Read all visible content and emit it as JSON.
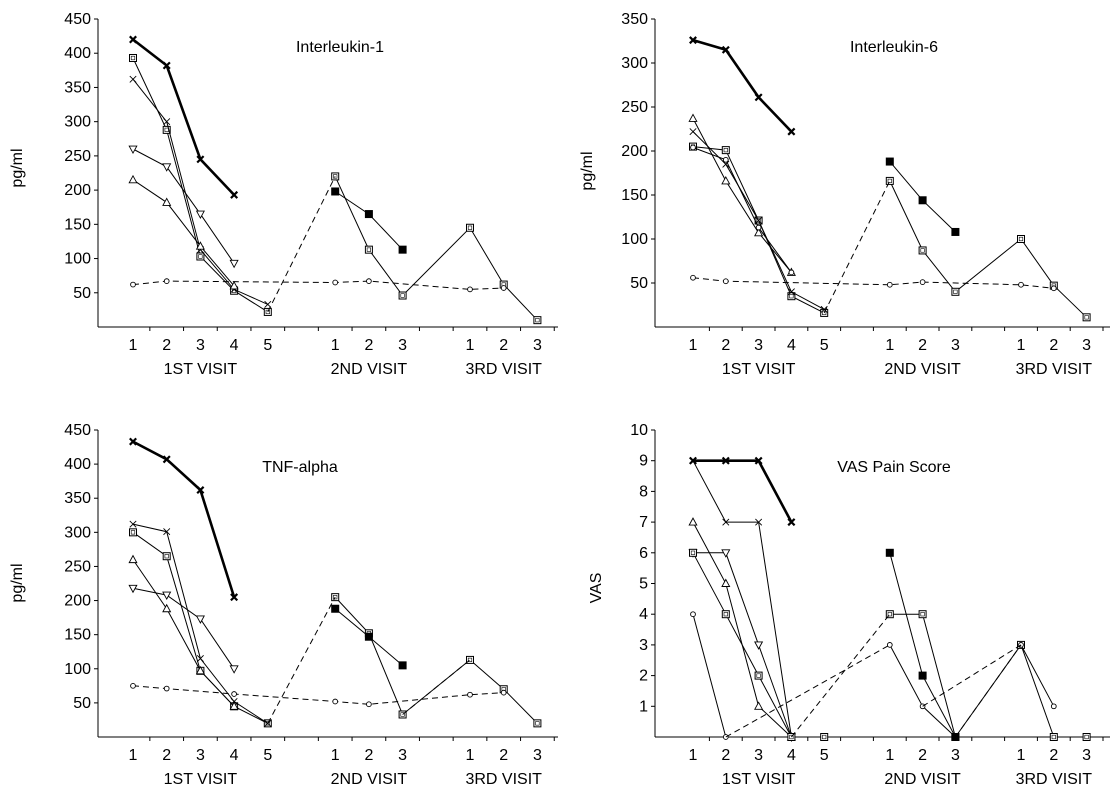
{
  "chart_data": [
    {
      "type": "line",
      "title": "Interleukin-1",
      "ylabel": "pg/ml",
      "ylim": [
        0,
        450
      ],
      "yticks": [
        50,
        100,
        150,
        200,
        250,
        300,
        350,
        400,
        450
      ],
      "x_tick_labels": [
        "1",
        "2",
        "3",
        "4",
        "5",
        "1",
        "2",
        "3",
        "1",
        "2",
        "3"
      ],
      "x_groups": [
        "1ST VISIT",
        "2ND VISIT",
        "3RD VISIT"
      ],
      "series": [
        {
          "marker": "x",
          "line": "bold",
          "segments": [
            [
              [
                1,
                420
              ],
              [
                2,
                382
              ],
              [
                3,
                245
              ],
              [
                4,
                193
              ]
            ]
          ]
        },
        {
          "marker": "square",
          "line": "solid",
          "segments": [
            [
              [
                1,
                393
              ],
              [
                2,
                288
              ],
              [
                3,
                103
              ],
              [
                4,
                53
              ],
              [
                5,
                22
              ]
            ],
            [
              [
                6,
                220
              ],
              [
                7,
                113
              ],
              [
                8,
                46
              ],
              [
                9,
                145
              ],
              [
                10,
                62
              ],
              [
                11,
                10
              ]
            ]
          ]
        },
        {
          "marker": "x-thin",
          "line": "solid",
          "segments": [
            [
              [
                1,
                362
              ],
              [
                2,
                300
              ],
              [
                3,
                113
              ],
              [
                4,
                55
              ],
              [
                5,
                33
              ]
            ]
          ]
        },
        {
          "marker": "triangle-down",
          "line": "solid",
          "segments": [
            [
              [
                1,
                260
              ],
              [
                2,
                234
              ],
              [
                3,
                165
              ],
              [
                4,
                93
              ]
            ]
          ]
        },
        {
          "marker": "triangle",
          "line": "solid",
          "segments": [
            [
              [
                1,
                215
              ],
              [
                2,
                182
              ],
              [
                3,
                118
              ],
              [
                4,
                60
              ]
            ]
          ]
        },
        {
          "marker": "square-filled",
          "line": "solid",
          "segments": [
            [
              [
                6,
                198
              ],
              [
                7,
                165
              ],
              [
                8,
                113
              ]
            ]
          ]
        },
        {
          "marker": "circle",
          "line": "dashed",
          "segments": [
            [
              [
                1,
                62
              ],
              [
                2,
                67
              ],
              [
                6,
                65
              ],
              [
                7,
                67
              ],
              [
                9,
                55
              ],
              [
                10,
                57
              ]
            ]
          ]
        },
        {
          "marker": "none",
          "line": "dashed",
          "segments": [
            [
              [
                5,
                22
              ],
              [
                6,
                220
              ]
            ]
          ]
        }
      ]
    },
    {
      "type": "line",
      "title": "Interleukin-6",
      "ylabel": "pg/ml",
      "ylim": [
        0,
        350
      ],
      "yticks": [
        50,
        100,
        150,
        200,
        250,
        300,
        350
      ],
      "x_tick_labels": [
        "1",
        "2",
        "3",
        "4",
        "5",
        "1",
        "2",
        "3",
        "1",
        "2",
        "3"
      ],
      "x_groups": [
        "1ST VISIT",
        "2ND VISIT",
        "3RD VISIT"
      ],
      "series": [
        {
          "marker": "x",
          "line": "bold",
          "segments": [
            [
              [
                1,
                326
              ],
              [
                2,
                315
              ],
              [
                3,
                261
              ],
              [
                4,
                222
              ]
            ]
          ]
        },
        {
          "marker": "square",
          "line": "solid",
          "segments": [
            [
              [
                1,
                205
              ],
              [
                2,
                201
              ],
              [
                3,
                121
              ],
              [
                4,
                35
              ],
              [
                5,
                16
              ]
            ],
            [
              [
                6,
                166
              ],
              [
                7,
                87
              ],
              [
                8,
                40
              ],
              [
                9,
                100
              ],
              [
                10,
                47
              ],
              [
                11,
                11
              ]
            ]
          ]
        },
        {
          "marker": "x-thin",
          "line": "solid",
          "segments": [
            [
              [
                1,
                222
              ],
              [
                2,
                185
              ],
              [
                3,
                121
              ],
              [
                4,
                40
              ],
              [
                5,
                20
              ]
            ]
          ]
        },
        {
          "marker": "triangle",
          "line": "solid",
          "segments": [
            [
              [
                1,
                237
              ],
              [
                2,
                166
              ],
              [
                3,
                107
              ],
              [
                4,
                62
              ]
            ]
          ]
        },
        {
          "marker": "circle-plain",
          "line": "solid",
          "segments": [
            [
              [
                1,
                204
              ],
              [
                2,
                190
              ],
              [
                3,
                113
              ],
              [
                4,
                62
              ]
            ]
          ]
        },
        {
          "marker": "square-filled",
          "line": "solid",
          "segments": [
            [
              [
                6,
                188
              ],
              [
                7,
                144
              ],
              [
                8,
                108
              ]
            ]
          ]
        },
        {
          "marker": "circle",
          "line": "dashed",
          "segments": [
            [
              [
                1,
                56
              ],
              [
                2,
                52
              ],
              [
                6,
                48
              ],
              [
                7,
                51
              ],
              [
                9,
                48
              ],
              [
                10,
                44
              ]
            ]
          ]
        },
        {
          "marker": "none",
          "line": "dashed",
          "segments": [
            [
              [
                5,
                16
              ],
              [
                6,
                166
              ]
            ]
          ]
        }
      ]
    },
    {
      "type": "line",
      "title": "TNF-alpha",
      "ylabel": "pg/ml",
      "ylim": [
        0,
        450
      ],
      "yticks": [
        50,
        100,
        150,
        200,
        250,
        300,
        350,
        400,
        450
      ],
      "x_tick_labels": [
        "1",
        "2",
        "3",
        "4",
        "5",
        "1",
        "2",
        "3",
        "1",
        "2",
        "3"
      ],
      "x_groups": [
        "1ST VISIT",
        "2ND VISIT",
        "3RD VISIT"
      ],
      "series": [
        {
          "marker": "x",
          "line": "bold",
          "segments": [
            [
              [
                1,
                433
              ],
              [
                2,
                407
              ],
              [
                3,
                362
              ],
              [
                4,
                205
              ]
            ]
          ]
        },
        {
          "marker": "square",
          "line": "solid",
          "segments": [
            [
              [
                1,
                300
              ],
              [
                2,
                265
              ],
              [
                3,
                97
              ],
              [
                4,
                45
              ],
              [
                5,
                20
              ]
            ],
            [
              [
                6,
                205
              ],
              [
                7,
                152
              ],
              [
                8,
                33
              ],
              [
                9,
                113
              ],
              [
                10,
                70
              ],
              [
                11,
                20
              ]
            ]
          ]
        },
        {
          "marker": "x-thin",
          "line": "solid",
          "segments": [
            [
              [
                1,
                312
              ],
              [
                2,
                301
              ],
              [
                3,
                115
              ],
              [
                4,
                52
              ],
              [
                5,
                20
              ]
            ]
          ]
        },
        {
          "marker": "triangle-down",
          "line": "solid",
          "segments": [
            [
              [
                1,
                218
              ],
              [
                2,
                208
              ],
              [
                3,
                173
              ],
              [
                4,
                100
              ]
            ]
          ]
        },
        {
          "marker": "triangle",
          "line": "solid",
          "segments": [
            [
              [
                1,
                260
              ],
              [
                2,
                188
              ],
              [
                3,
                97
              ],
              [
                4,
                45
              ]
            ]
          ]
        },
        {
          "marker": "square-filled",
          "line": "solid",
          "segments": [
            [
              [
                6,
                188
              ],
              [
                7,
                147
              ],
              [
                8,
                105
              ]
            ]
          ]
        },
        {
          "marker": "circle",
          "line": "dashed",
          "segments": [
            [
              [
                1,
                75
              ],
              [
                2,
                71
              ],
              [
                4,
                63
              ],
              [
                6,
                52
              ],
              [
                7,
                48
              ],
              [
                9,
                62
              ],
              [
                10,
                65
              ]
            ]
          ]
        },
        {
          "marker": "none",
          "line": "dashed",
          "segments": [
            [
              [
                5,
                20
              ],
              [
                6,
                205
              ]
            ],
            [
              [
                8,
                33
              ],
              [
                9,
                113
              ]
            ]
          ]
        }
      ]
    },
    {
      "type": "line",
      "title": "VAS Pain Score",
      "ylabel": "VAS",
      "ylim": [
        0,
        10
      ],
      "yticks": [
        1,
        2,
        3,
        4,
        5,
        6,
        7,
        8,
        9,
        10
      ],
      "x_tick_labels": [
        "1",
        "2",
        "3",
        "4",
        "5",
        "1",
        "2",
        "3",
        "1",
        "2",
        "3"
      ],
      "x_groups": [
        "1ST VISIT",
        "2ND VISIT",
        "3RD VISIT"
      ],
      "series": [
        {
          "marker": "x",
          "line": "bold",
          "segments": [
            [
              [
                1,
                9
              ],
              [
                2,
                9
              ],
              [
                3,
                9
              ],
              [
                4,
                7
              ]
            ]
          ]
        },
        {
          "marker": "x-thin",
          "line": "solid",
          "segments": [
            [
              [
                1,
                9
              ],
              [
                2,
                7
              ],
              [
                3,
                7
              ],
              [
                4,
                0
              ]
            ]
          ]
        },
        {
          "marker": "triangle",
          "line": "solid",
          "segments": [
            [
              [
                1,
                7
              ],
              [
                2,
                5
              ],
              [
                3,
                1
              ],
              [
                4,
                0
              ]
            ]
          ]
        },
        {
          "marker": "triangle-down",
          "line": "solid",
          "segments": [
            [
              [
                1,
                6
              ],
              [
                2,
                6
              ],
              [
                3,
                3
              ],
              [
                4,
                0
              ]
            ]
          ]
        },
        {
          "marker": "square",
          "line": "solid",
          "segments": [
            [
              [
                1,
                6
              ],
              [
                2,
                4
              ],
              [
                3,
                2
              ],
              [
                4,
                0
              ],
              [
                5,
                0
              ]
            ],
            [
              [
                6,
                4
              ],
              [
                7,
                4
              ],
              [
                8,
                0
              ],
              [
                9,
                3
              ],
              [
                10,
                0
              ],
              [
                11,
                0
              ]
            ]
          ]
        },
        {
          "marker": "circle",
          "line": "solid",
          "segments": [
            [
              [
                1,
                4
              ],
              [
                2,
                0
              ]
            ],
            [
              [
                6,
                3
              ],
              [
                7,
                1
              ],
              [
                8,
                0
              ]
            ],
            [
              [
                9,
                3
              ],
              [
                10,
                1
              ]
            ]
          ]
        },
        {
          "marker": "square-filled",
          "line": "solid",
          "segments": [
            [
              [
                6,
                6
              ],
              [
                7,
                2
              ],
              [
                8,
                0
              ]
            ]
          ]
        },
        {
          "marker": "none",
          "line": "dashed",
          "segments": [
            [
              [
                2,
                0
              ],
              [
                6,
                3
              ]
            ],
            [
              [
                4,
                0
              ],
              [
                6,
                4
              ]
            ],
            [
              [
                7,
                1
              ],
              [
                9,
                3
              ]
            ],
            [
              [
                8,
                0
              ],
              [
                9,
                3
              ]
            ]
          ]
        }
      ]
    }
  ]
}
